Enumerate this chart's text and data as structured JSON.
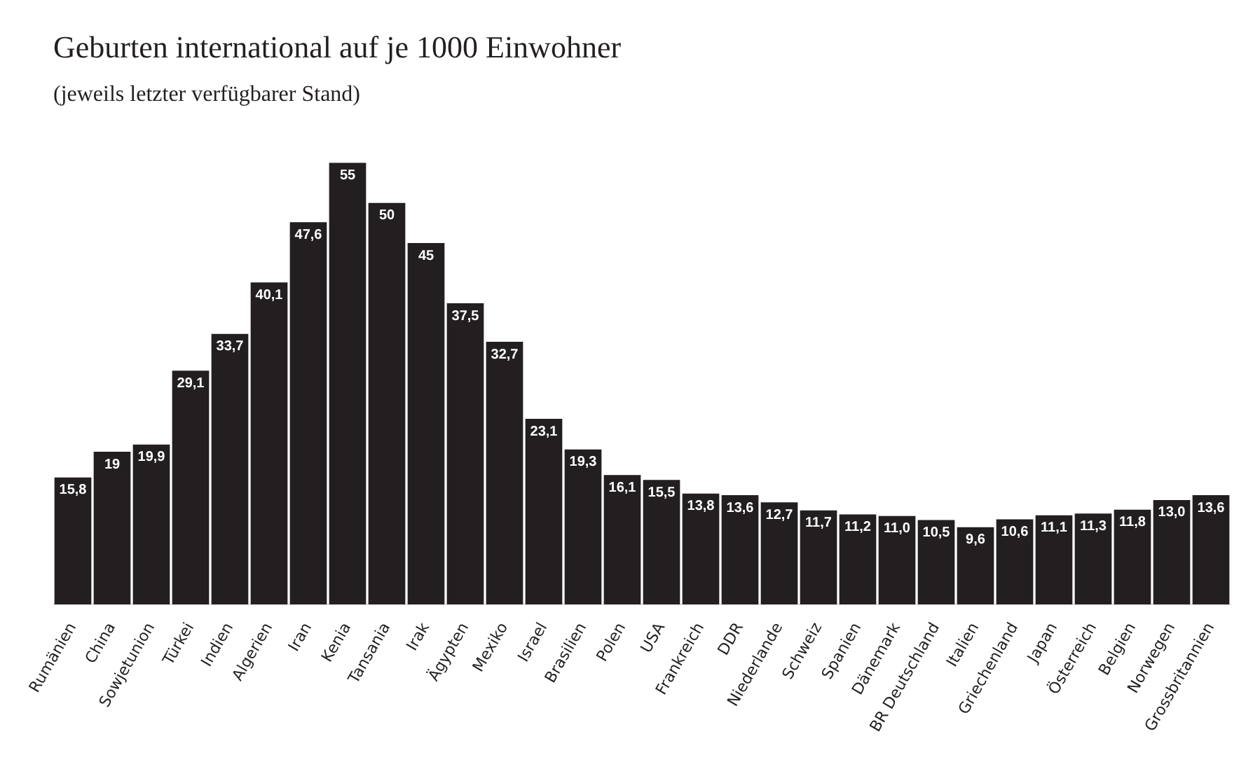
{
  "chart_data": {
    "type": "bar",
    "title": "Geburten international auf je 1000 Einwohner",
    "subtitle": "(jeweils letzter verfügbarer Stand)",
    "categories": [
      "Rumänien",
      "China",
      "Sowjetunion",
      "Türkei",
      "Indien",
      "Algerien",
      "Iran",
      "Kenia",
      "Tansania",
      "Irak",
      "Ägypten",
      "Mexiko",
      "Israel",
      "Brasilien",
      "Polen",
      "USA",
      "Frankreich",
      "DDR",
      "Niederlande",
      "Schweiz",
      "Spanien",
      "Dänemark",
      "BR Deutschland",
      "Italien",
      "Griechenland",
      "Japan",
      "Österreich",
      "Belgien",
      "Norwegen",
      "Grossbritannien"
    ],
    "values": [
      15.8,
      19,
      19.9,
      29.1,
      33.7,
      40.1,
      47.6,
      55,
      50,
      45,
      37.5,
      32.7,
      23.1,
      19.3,
      16.1,
      15.5,
      13.8,
      13.6,
      12.7,
      11.7,
      11.2,
      11.0,
      10.5,
      9.6,
      10.6,
      11.1,
      11.3,
      11.8,
      13.0,
      13.6
    ],
    "value_labels": [
      "15,8",
      "19",
      "19,9",
      "29,1",
      "33,7",
      "40,1",
      "47,6",
      "55",
      "50",
      "45",
      "37,5",
      "32,7",
      "23,1",
      "19,3",
      "16,1",
      "15,5",
      "13,8",
      "13,6",
      "12,7",
      "11,7",
      "11,2",
      "11,0",
      "10,5",
      "9,6",
      "10,6",
      "11,1",
      "11,3",
      "11,8",
      "13,0",
      "13,6"
    ],
    "color": "#231f20",
    "tick_labels": "x",
    "grid": false,
    "legend": false
  }
}
